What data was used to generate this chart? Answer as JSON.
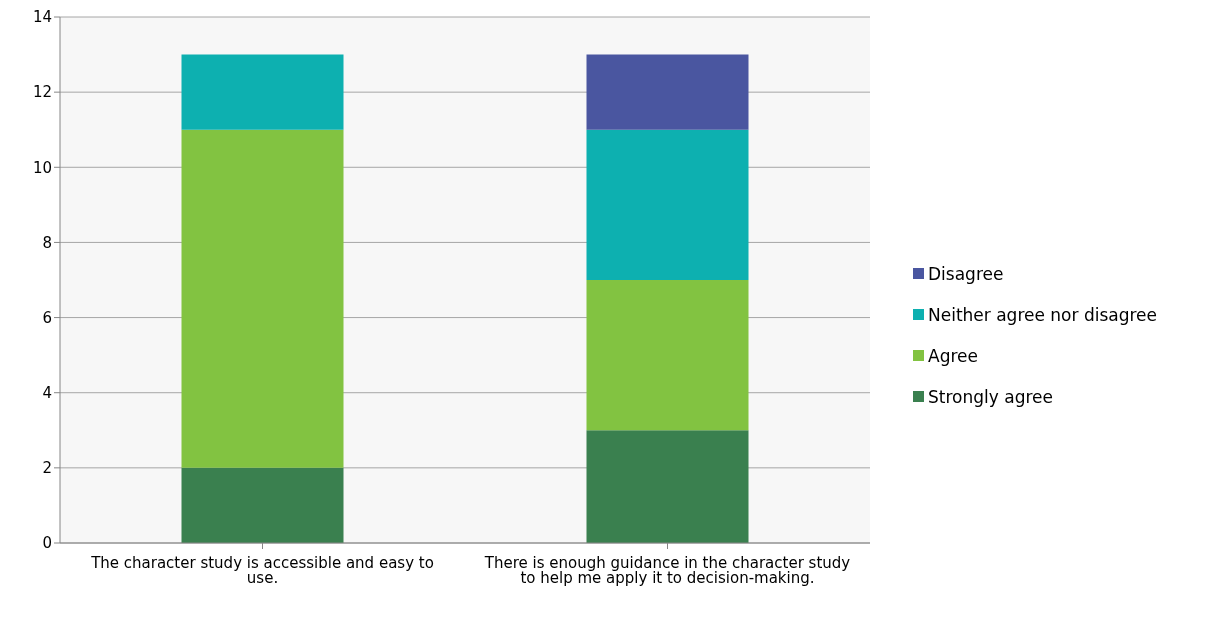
{
  "chart_data": {
    "type": "bar",
    "stacked": true,
    "categories": [
      "The character study is accessible and easy to use.",
      "There is enough guidance in the character study to help me apply it to decision-making."
    ],
    "series": [
      {
        "name": "Strongly agree",
        "color": "#3a804f",
        "values": [
          2,
          3
        ]
      },
      {
        "name": "Agree",
        "color": "#82c341",
        "values": [
          9,
          4
        ]
      },
      {
        "name": "Neither agree nor disagree",
        "color": "#0db0b0",
        "values": [
          2,
          4
        ]
      },
      {
        "name": "Disagree",
        "color": "#4a56a0",
        "values": [
          0,
          2
        ]
      }
    ],
    "ylim": [
      0,
      14
    ],
    "yticks": [
      0,
      2,
      4,
      6,
      8,
      10,
      12,
      14
    ],
    "grid": "y",
    "legend": "right"
  }
}
